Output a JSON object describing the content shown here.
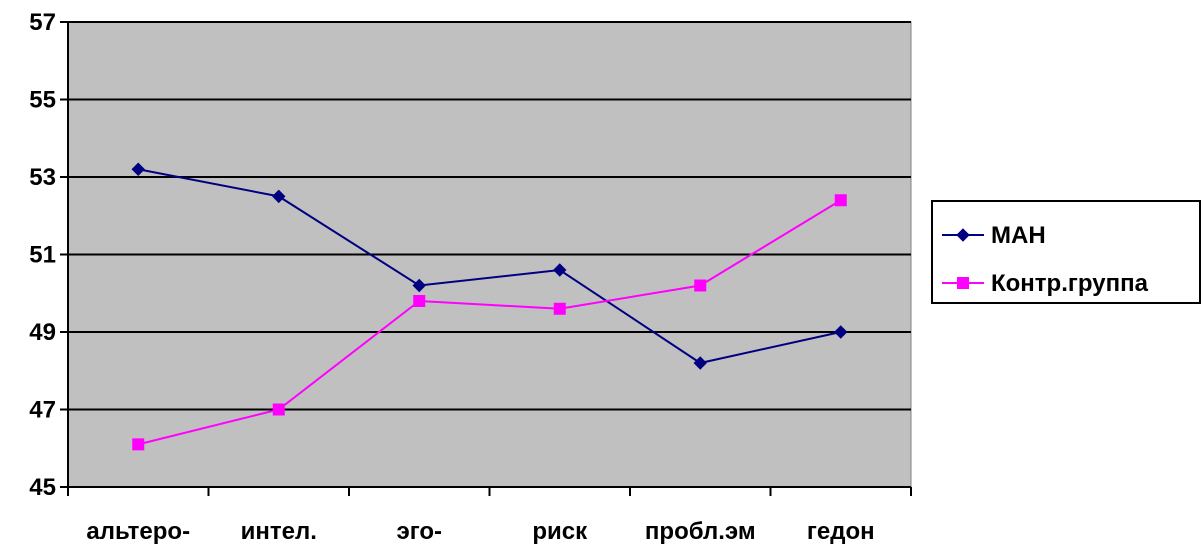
{
  "chart_data": {
    "type": "line",
    "categories": [
      "альтеро-",
      "интел.",
      "эго-",
      "риск",
      "пробл.эм",
      "гедон"
    ],
    "series": [
      {
        "name": "МАН",
        "values": [
          53.2,
          52.5,
          50.2,
          50.6,
          48.2,
          49.0
        ],
        "color": "#000080",
        "marker": "diamond"
      },
      {
        "name": "Контр.группа",
        "values": [
          46.1,
          47.0,
          49.8,
          49.6,
          50.2,
          52.4
        ],
        "color": "#ff00ff",
        "marker": "square"
      }
    ],
    "ylim": [
      45,
      57
    ],
    "yticks": [
      "45",
      "47",
      "49",
      "51",
      "53",
      "55",
      "57"
    ],
    "grid": true,
    "plot_background": "#c0c0c0",
    "legend_position": "right"
  }
}
